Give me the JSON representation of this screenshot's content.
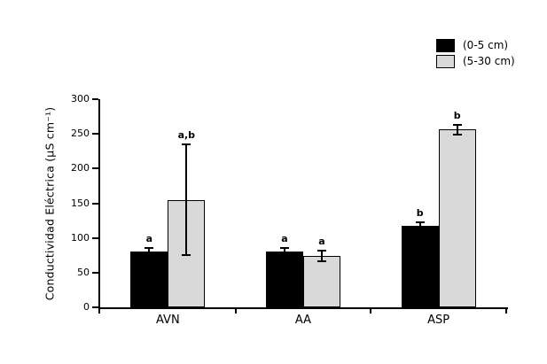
{
  "chart_data": {
    "type": "bar",
    "title": "",
    "xlabel": "",
    "ylabel": "Conductividad Eléctrica (µS cm⁻¹)",
    "ylim": [
      0,
      300
    ],
    "yticks": [
      0,
      50,
      100,
      150,
      200,
      250,
      300
    ],
    "categories": [
      "AVN",
      "AA",
      "ASP"
    ],
    "series": [
      {
        "name": "(0-5 cm)",
        "color": "#000000",
        "values": [
          80,
          80,
          117
        ],
        "errors": [
          6,
          5,
          6
        ],
        "error_direction": "up",
        "letters": [
          "a",
          "a",
          "b"
        ]
      },
      {
        "name": "(5-30 cm)",
        "color": "#d9d9d9",
        "values": [
          155,
          74,
          256
        ],
        "errors": [
          80,
          8,
          7
        ],
        "error_direction": "both",
        "letters": [
          "a,b",
          "a",
          "b"
        ]
      }
    ],
    "legend_position": "top-right",
    "grid": false,
    "axis_color": "#000000",
    "background": "#ffffff"
  }
}
